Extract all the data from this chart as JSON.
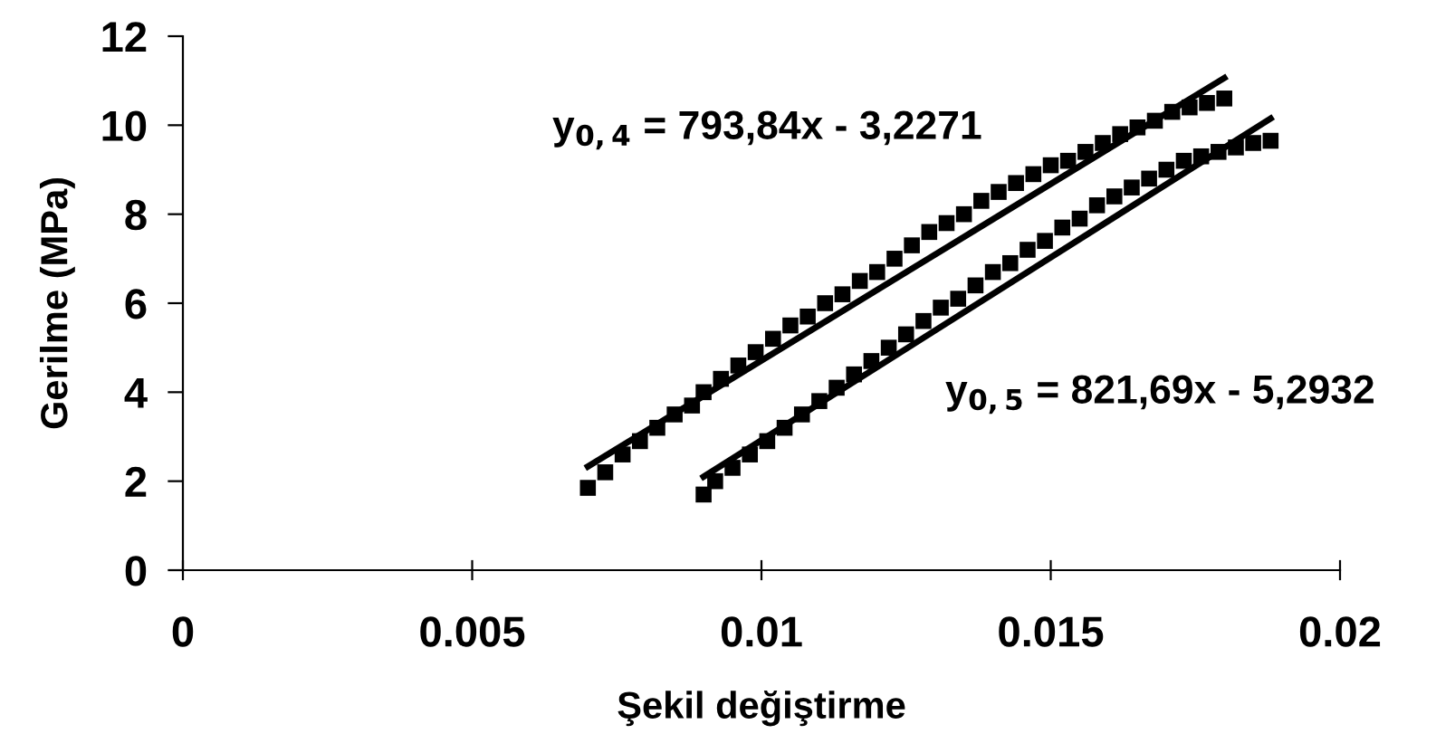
{
  "chart_data": {
    "type": "scatter",
    "xlabel": "Şekil değiştirme",
    "ylabel": "Gerilme (MPa)",
    "xlim": [
      0,
      0.02
    ],
    "xticks": [
      0,
      0.005,
      0.01,
      0.015,
      0.02
    ],
    "ylim": [
      0,
      12
    ],
    "yticks": [
      0,
      2,
      4,
      6,
      8,
      10,
      12
    ],
    "grid": false,
    "series": [
      {
        "marker": "square",
        "color": "#000000",
        "x": [
          0.007,
          0.0073,
          0.0076,
          0.0079,
          0.0082,
          0.0085,
          0.0088,
          0.009,
          0.0093,
          0.0096,
          0.0099,
          0.0102,
          0.0105,
          0.0108,
          0.0111,
          0.0114,
          0.0117,
          0.012,
          0.0123,
          0.0126,
          0.0129,
          0.0132,
          0.0135,
          0.0138,
          0.0141,
          0.0144,
          0.0147,
          0.015,
          0.0153,
          0.0156,
          0.0159,
          0.0162,
          0.0165,
          0.0168,
          0.0171,
          0.0174,
          0.0177,
          0.018
        ],
        "values": [
          1.85,
          2.2,
          2.6,
          2.9,
          3.2,
          3.5,
          3.7,
          4.0,
          4.3,
          4.6,
          4.9,
          5.2,
          5.5,
          5.7,
          6.0,
          6.2,
          6.5,
          6.7,
          7.0,
          7.3,
          7.6,
          7.8,
          8.0,
          8.3,
          8.5,
          8.7,
          8.9,
          9.1,
          9.2,
          9.4,
          9.6,
          9.8,
          9.95,
          10.1,
          10.3,
          10.4,
          10.5,
          10.6
        ]
      },
      {
        "marker": "square",
        "color": "#000000",
        "x": [
          0.009,
          0.0092,
          0.0095,
          0.0098,
          0.0101,
          0.0104,
          0.0107,
          0.011,
          0.0113,
          0.0116,
          0.0119,
          0.0122,
          0.0125,
          0.0128,
          0.0131,
          0.0134,
          0.0137,
          0.014,
          0.0143,
          0.0146,
          0.0149,
          0.0152,
          0.0155,
          0.0158,
          0.0161,
          0.0164,
          0.0167,
          0.017,
          0.0173,
          0.0176,
          0.0179,
          0.0182,
          0.0185,
          0.0188
        ],
        "values": [
          1.7,
          2.0,
          2.3,
          2.6,
          2.9,
          3.2,
          3.5,
          3.8,
          4.1,
          4.4,
          4.7,
          5.0,
          5.3,
          5.6,
          5.9,
          6.1,
          6.4,
          6.7,
          6.9,
          7.2,
          7.4,
          7.7,
          7.9,
          8.2,
          8.4,
          8.6,
          8.8,
          9.0,
          9.2,
          9.3,
          9.4,
          9.5,
          9.6,
          9.65
        ]
      },
      {
        "type": "line",
        "color": "#000000",
        "x": [
          0.007,
          0.018
        ],
        "values": [
          2.33,
          11.06
        ]
      },
      {
        "type": "line",
        "color": "#000000",
        "x": [
          0.009,
          0.0188
        ],
        "values": [
          2.1,
          10.15
        ]
      }
    ],
    "annotations": [
      "y$_{0,4}$ = 793,84x - 3,2271",
      "y$_{0,5}$ = 821,69x - 5,2932"
    ]
  }
}
